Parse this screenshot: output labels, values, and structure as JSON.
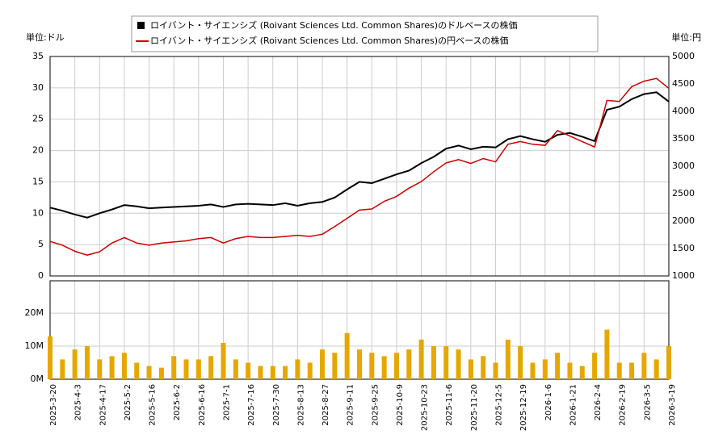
{
  "chart_data": [
    {
      "type": "line",
      "y_unit": "単位:ドル",
      "y2_unit": "単位:円",
      "ylim": [
        0,
        35
      ],
      "yticks": [
        0,
        5,
        10,
        15,
        20,
        25,
        30,
        35
      ],
      "y2lim": [
        1000,
        5000
      ],
      "y2ticks": [
        1000,
        1500,
        2000,
        2500,
        3000,
        3500,
        4000,
        4500,
        5000
      ],
      "grid": true,
      "series": [
        {
          "name": "ロイバント・サイエンシズ (Roivant Sciences Ltd. Common Shares)のドルベースの株価",
          "color": "#000000",
          "values": [
            10.9,
            10.4,
            9.8,
            9.3,
            10.0,
            10.6,
            11.3,
            11.1,
            10.8,
            10.9,
            11.0,
            11.1,
            11.2,
            11.4,
            11.0,
            11.4,
            11.5,
            11.4,
            11.3,
            11.6,
            11.2,
            11.6,
            11.8,
            12.5,
            13.8,
            15.0,
            14.8,
            15.5,
            16.2,
            16.8,
            18.0,
            19.0,
            20.3,
            20.8,
            20.2,
            20.6,
            20.5,
            21.8,
            22.3,
            21.8,
            21.4,
            22.5,
            22.8,
            22.2,
            21.5,
            26.5,
            27.0,
            28.2,
            29.0,
            29.3,
            27.8
          ]
        },
        {
          "name": "ロイバント・サイエンシズ (Roivant Sciences Ltd. Common Shares)の円ベースの株価",
          "color": "#cc0000",
          "axis": "y2",
          "values": [
            1630,
            1560,
            1450,
            1380,
            1440,
            1600,
            1700,
            1600,
            1560,
            1600,
            1620,
            1640,
            1680,
            1700,
            1600,
            1680,
            1720,
            1700,
            1700,
            1720,
            1740,
            1720,
            1760,
            1900,
            2050,
            2200,
            2220,
            2360,
            2450,
            2600,
            2720,
            2900,
            3060,
            3120,
            3050,
            3140,
            3080,
            3400,
            3450,
            3400,
            3380,
            3650,
            3550,
            3450,
            3350,
            4200,
            4180,
            4450,
            4550,
            4600,
            4420
          ]
        }
      ]
    },
    {
      "type": "bar",
      "color": "#e6a700",
      "ylim": [
        0,
        29800000
      ],
      "yticks": [
        {
          "value": 0,
          "label": "0M"
        },
        {
          "value": 10000000,
          "label": "10M"
        },
        {
          "value": 20000000,
          "label": "20M"
        }
      ],
      "categories": [
        "2025-3-20",
        null,
        "2025-4-3",
        null,
        "2025-4-17",
        null,
        "2025-5-2",
        null,
        "2025-5-16",
        null,
        "2025-6-2",
        null,
        "2025-6-16",
        null,
        "2025-7-1",
        null,
        "2025-7-16",
        null,
        "2025-7-30",
        null,
        "2025-8-13",
        null,
        "2025-8-27",
        null,
        "2025-9-11",
        null,
        "2025-9-25",
        null,
        "2025-10-9",
        null,
        "2025-10-23",
        null,
        "2025-11-6",
        null,
        "2025-11-20",
        null,
        "2025-12-5",
        null,
        "2025-12-19",
        null,
        "2026-1-6",
        null,
        "2026-1-21",
        null,
        "2026-2-4",
        null,
        "2026-2-19",
        null,
        "2026-3-5",
        null,
        "2026-3-19"
      ],
      "values": [
        13000000,
        6000000,
        9000000,
        10000000,
        6000000,
        7000000,
        8000000,
        5000000,
        4000000,
        3500000,
        7000000,
        6000000,
        6000000,
        7000000,
        11000000,
        6000000,
        5000000,
        4000000,
        4000000,
        4000000,
        6000000,
        5000000,
        9000000,
        8000000,
        14000000,
        9000000,
        8000000,
        7000000,
        8000000,
        9000000,
        12000000,
        10000000,
        10000000,
        9000000,
        6000000,
        7000000,
        5000000,
        12000000,
        10000000,
        5000000,
        6000000,
        8000000,
        5000000,
        4000000,
        8000000,
        15000000,
        5000000,
        5000000,
        8000000,
        6000000,
        10000000
      ]
    }
  ]
}
